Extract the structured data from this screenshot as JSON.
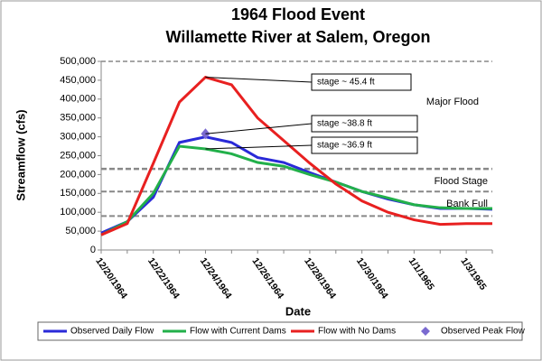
{
  "chart_data": {
    "type": "line",
    "title": [
      "1964 Flood Event",
      "Willamette River at Salem, Oregon"
    ],
    "y_label": "Streamflow (cfs)",
    "x_label": "Date",
    "categories": [
      "12/20/1964",
      null,
      "12/22/1964",
      null,
      "12/24/1964",
      null,
      "12/26/1964",
      null,
      "12/28/1964",
      null,
      "12/30/1964",
      null,
      "1/1/1965",
      null,
      "1/3/1965",
      null
    ],
    "ylim": [
      0,
      500000
    ],
    "yticks": [
      0,
      {
        "value": 50000,
        "label": "50,000"
      },
      {
        "value": 100000,
        "label": "100,000"
      },
      {
        "value": 150000,
        "label": "150,000"
      },
      {
        "value": 200000,
        "label": "200,000"
      },
      {
        "value": 250000,
        "label": "250,000"
      },
      {
        "value": 300000,
        "label": "300,000"
      },
      {
        "value": 350000,
        "label": "350,000"
      },
      {
        "value": 400000,
        "label": "400,000"
      },
      {
        "value": 450000,
        "label": "450,000"
      },
      {
        "value": 500000,
        "label": "500,000"
      }
    ],
    "series": [
      {
        "name": "Observed Daily Flow",
        "color": "#2a2ad8",
        "values": [
          45000,
          75000,
          140000,
          285000,
          300000,
          285000,
          245000,
          232000,
          205000,
          180000,
          155000,
          135000,
          120000,
          110000,
          110000,
          108000
        ]
      },
      {
        "name": "Flow with Current Dams",
        "color": "#22b04a",
        "values": [
          40000,
          75000,
          150000,
          275000,
          268000,
          255000,
          232000,
          222000,
          200000,
          180000,
          155000,
          138000,
          120000,
          112000,
          110000,
          110000
        ]
      },
      {
        "name": "Flow with No Dams",
        "color": "#e82020",
        "values": [
          40000,
          70000,
          230000,
          392000,
          458000,
          438000,
          350000,
          290000,
          230000,
          175000,
          130000,
          100000,
          80000,
          68000,
          70000,
          70000
        ]
      },
      {
        "name": "Observed Peak Flow",
        "color": "#7a6ad0",
        "marker": "diamond",
        "values": [
          null,
          null,
          null,
          null,
          308000,
          null,
          null,
          null,
          null,
          null,
          null,
          null,
          null,
          null,
          null,
          null
        ]
      }
    ],
    "reference_lines": [
      {
        "value": 215000,
        "label": "Flood Stage"
      },
      {
        "value": 155000,
        "label": "Bank Full"
      },
      {
        "value": 90000
      }
    ],
    "region_label": "Major Flood",
    "annotations": [
      "stage ~ 45.4 ft",
      "stage ~38.8 ft",
      "stage ~36.9 ft"
    ],
    "grid": false
  }
}
